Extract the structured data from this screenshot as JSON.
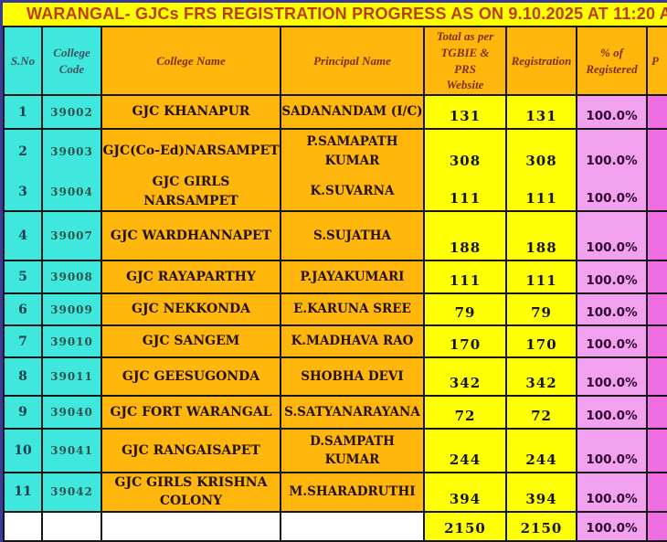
{
  "title": "WARANGAL- GJCs FRS REGISTRATION PROGRESS AS  ON  9.10.2025 AT  11:20 A",
  "colors": {
    "frame_border": "#3939a0",
    "title_bg": "#ffff00",
    "title_text": "#bf3a05",
    "header_cyan": "#3fe7dc",
    "header_orange": "#ffb60d",
    "value_yellow": "#ffff06",
    "percent_pink": "#f1a1ee",
    "edge_pink": "#ef6ee2",
    "grid_line": "#161616"
  },
  "columns": {
    "sno": "S.No",
    "code": "College\nCode",
    "name": "College Name",
    "principal": "Principal Name",
    "total": "Total as per\nTGBIE &\nPRS\nWebsite",
    "registration": "Registration",
    "percent": "% of\nRegistered",
    "partial": "P"
  },
  "rows": [
    {
      "sno": "1",
      "code": "39002",
      "name": "GJC  KHANAPUR",
      "principal": "SADANANDAM (I/C)",
      "total": "131",
      "registration": "131",
      "percent": "100.0%"
    },
    {
      "sno": "2",
      "code": "39003",
      "name": "GJC(Co-Ed)NARSAMPET",
      "principal": "P.SAMAPATH\nKUMAR",
      "total": "308",
      "registration": "308",
      "percent": "100.0%"
    },
    {
      "sno": "3",
      "code": "39004",
      "name": "GJC GIRLS\nNARSAMPET",
      "principal": "K.SUVARNA",
      "total": "111",
      "registration": "111",
      "percent": "100.0%"
    },
    {
      "sno": "4",
      "code": "39007",
      "name": "GJC WARDHANNAPET",
      "principal": "S.SUJATHA",
      "total": "188",
      "registration": "188",
      "percent": "100.0%"
    },
    {
      "sno": "5",
      "code": "39008",
      "name": "GJC RAYAPARTHY",
      "principal": "P.JAYAKUMARI",
      "total": "111",
      "registration": "111",
      "percent": "100.0%"
    },
    {
      "sno": "6",
      "code": "39009",
      "name": "GJC NEKKONDA",
      "principal": "E.KARUNA SREE",
      "total": "79",
      "registration": "79",
      "percent": "100.0%"
    },
    {
      "sno": "7",
      "code": "39010",
      "name": "GJC SANGEM",
      "principal": "K.MADHAVA RAO",
      "total": "170",
      "registration": "170",
      "percent": "100.0%"
    },
    {
      "sno": "8",
      "code": "39011",
      "name": "GJC GEESUGONDA",
      "principal": "SHOBHA DEVI",
      "total": "342",
      "registration": "342",
      "percent": "100.0%"
    },
    {
      "sno": "9",
      "code": "39040",
      "name": "GJC FORT WARANGAL",
      "principal": "S.SATYANARAYANA",
      "total": "72",
      "registration": "72",
      "percent": "100.0%"
    },
    {
      "sno": "10",
      "code": "39041",
      "name": "GJC RANGAISAPET",
      "principal": "D.SAMPATH\nKUMAR",
      "total": "244",
      "registration": "244",
      "percent": "100.0%"
    },
    {
      "sno": "11",
      "code": "39042",
      "name": "GJC GIRLS KRISHNA\nCOLONY",
      "principal": "M.SHARADRUTHI",
      "total": "394",
      "registration": "394",
      "percent": "100.0%"
    }
  ],
  "totals": {
    "total": "2150",
    "registration": "2150",
    "percent": "100.0%"
  }
}
